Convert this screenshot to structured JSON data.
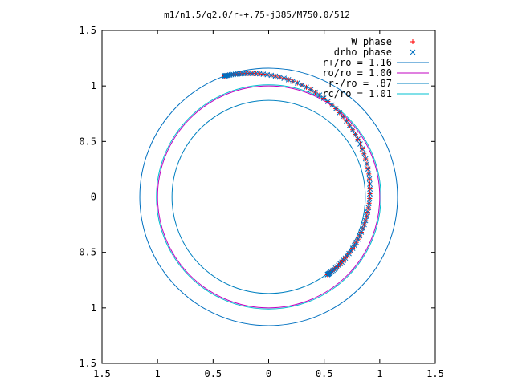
{
  "chart_data": {
    "type": "scatter",
    "title": "m1/n1.5/q2.0/r-+.75-j385/M750.0/512",
    "xlabel": "",
    "ylabel": "",
    "xlim": [
      -1.5,
      1.5
    ],
    "ylim": [
      -1.5,
      1.5
    ],
    "x_ticks": [
      -1.5,
      -1,
      -0.5,
      0,
      0.5,
      1,
      1.5
    ],
    "y_ticks": [
      -1.5,
      -1,
      -0.5,
      0,
      0.5,
      1,
      1.5
    ],
    "x_tick_labels": [
      "1.5",
      "1",
      "0.5",
      "0",
      "0.5",
      "1",
      "1.5"
    ],
    "y_tick_labels": [
      "1.5",
      "1",
      "0.5",
      "0",
      "0.5",
      "1",
      "1.5"
    ],
    "grid": false,
    "legend_position": "top-right",
    "series": [
      {
        "name": "W phase",
        "kind": "points",
        "marker": "plus",
        "color": "#ff0000",
        "curve": "spiral",
        "start_point": [
          -0.4,
          1.09
        ],
        "end_point": [
          0.53,
          -0.7
        ],
        "point_count": 90
      },
      {
        "name": "drho phase",
        "kind": "points",
        "marker": "cross",
        "color": "#0070c0",
        "curve": "spiral",
        "start_point": [
          -0.4,
          1.09
        ],
        "end_point": [
          0.53,
          -0.7
        ],
        "point_count": 90
      },
      {
        "name": "r+/ro = 1.16",
        "kind": "circle",
        "radius": 1.16,
        "color": "#0070c0"
      },
      {
        "name": "ro/ro = 1.00",
        "kind": "circle",
        "radius": 1.0,
        "color": "#c000c0"
      },
      {
        "name": "r-/ro = .87",
        "kind": "circle",
        "radius": 0.87,
        "color": "#0080c0"
      },
      {
        "name": "rc/ro = 1.01",
        "kind": "circle",
        "radius": 1.01,
        "color": "#00c0d0"
      }
    ]
  }
}
